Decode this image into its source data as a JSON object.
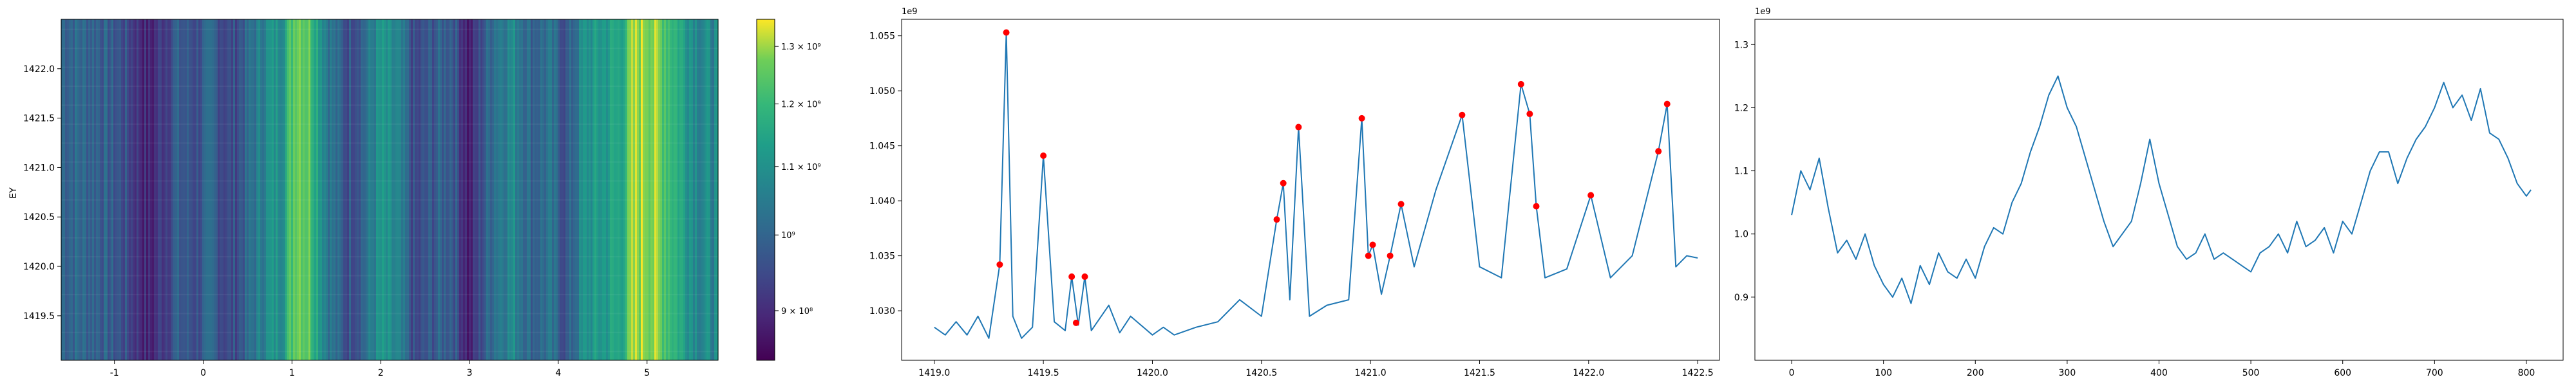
{
  "chart_data": [
    {
      "type": "heatmap",
      "colormap": "viridis",
      "xlabel": "",
      "ylabel": "EY",
      "xlim": [
        -1.6,
        5.8
      ],
      "ylim": [
        1419.05,
        1422.5
      ],
      "x_ticks": [
        "-1",
        "0",
        "1",
        "2",
        "3",
        "4",
        "5"
      ],
      "y_ticks": [
        "1419.5",
        "1420.0",
        "1420.5",
        "1421.0",
        "1421.5",
        "1422.0"
      ],
      "colorbar": {
        "scale": "log",
        "range": [
          840000000,
          1350000000
        ],
        "tick_values": [
          900000000,
          1000000000,
          1100000000,
          1200000000,
          1300000000
        ],
        "tick_labels": [
          "9 × 10⁸",
          "10⁹",
          "1.1 × 10⁹",
          "1.2 × 10⁹",
          "1.3 × 10⁹"
        ]
      },
      "column_profile_note_x": [
        -1.6,
        -1.2,
        -0.9,
        -0.6,
        -0.5,
        -0.3,
        -0.1,
        0.1,
        0.3,
        0.5,
        0.7,
        0.9,
        1.05,
        1.2,
        1.4,
        1.6,
        1.8,
        2.0,
        2.2,
        2.4,
        2.6,
        2.8,
        3.0,
        3.1,
        3.3,
        3.5,
        3.7,
        3.9,
        4.1,
        4.3,
        4.5,
        4.7,
        4.85,
        5.0,
        5.2,
        5.4,
        5.6,
        5.8
      ],
      "column_profile_values": [
        1010000000,
        1000000000,
        960000000,
        880000000,
        920000000,
        980000000,
        960000000,
        990000000,
        940000000,
        1000000000,
        1080000000,
        1120000000,
        1300000000,
        1250000000,
        1050000000,
        960000000,
        1000000000,
        1100000000,
        1050000000,
        930000000,
        980000000,
        1000000000,
        870000000,
        940000000,
        1050000000,
        1080000000,
        1000000000,
        1020000000,
        960000000,
        1100000000,
        1120000000,
        1150000000,
        1290000000,
        1310000000,
        1250000000,
        1150000000,
        1080000000,
        1070000000
      ]
    },
    {
      "type": "line",
      "offset_label": "1e9",
      "xlabel": "",
      "ylabel": "",
      "xlim": [
        1418.85,
        1422.6
      ],
      "ylim": [
        1.0255,
        1.0565
      ],
      "x_ticks": [
        "1419.0",
        "1419.5",
        "1420.0",
        "1420.5",
        "1421.0",
        "1421.5",
        "1422.0",
        "1422.5"
      ],
      "y_ticks": [
        "1.030",
        "1.035",
        "1.040",
        "1.045",
        "1.050",
        "1.055"
      ],
      "series": [
        {
          "x": [
            1419.0,
            1419.05,
            1419.1,
            1419.15,
            1419.2,
            1419.25,
            1419.3,
            1419.33,
            1419.36,
            1419.4,
            1419.45,
            1419.5,
            1419.55,
            1419.6,
            1419.63,
            1419.66,
            1419.69,
            1419.72,
            1419.8,
            1419.85,
            1419.9,
            1420.0,
            1420.05,
            1420.1,
            1420.2,
            1420.3,
            1420.4,
            1420.5,
            1420.57,
            1420.6,
            1420.63,
            1420.67,
            1420.72,
            1420.8,
            1420.9,
            1420.96,
            1420.99,
            1421.01,
            1421.05,
            1421.09,
            1421.14,
            1421.2,
            1421.3,
            1421.42,
            1421.5,
            1421.6,
            1421.69,
            1421.73,
            1421.76,
            1421.8,
            1421.9,
            1422.01,
            1422.1,
            1422.2,
            1422.32,
            1422.36,
            1422.4,
            1422.45,
            1422.5
          ],
          "y": [
            1.0285,
            1.0278,
            1.029,
            1.0278,
            1.0295,
            1.0275,
            1.0342,
            1.0553,
            1.0295,
            1.0275,
            1.0285,
            1.0441,
            1.029,
            1.0282,
            1.0331,
            1.0287,
            1.0331,
            1.0282,
            1.0305,
            1.028,
            1.0295,
            1.0278,
            1.0285,
            1.0278,
            1.0285,
            1.029,
            1.031,
            1.0295,
            1.0383,
            1.0416,
            1.031,
            1.0467,
            1.0295,
            1.0305,
            1.031,
            1.0475,
            1.035,
            1.036,
            1.0315,
            1.035,
            1.0397,
            1.034,
            1.041,
            1.0478,
            1.034,
            1.033,
            1.0506,
            1.0479,
            1.0395,
            1.033,
            1.0338,
            1.0405,
            1.033,
            1.035,
            1.0445,
            1.0488,
            1.034,
            1.035,
            1.0348
          ]
        }
      ],
      "peaks": {
        "x": [
          1419.3,
          1419.33,
          1419.5,
          1419.63,
          1419.65,
          1419.69,
          1420.57,
          1420.6,
          1420.67,
          1420.96,
          1420.99,
          1421.01,
          1421.09,
          1421.14,
          1421.42,
          1421.69,
          1421.73,
          1421.76,
          1422.01,
          1422.32,
          1422.36
        ],
        "y": [
          1.0342,
          1.0553,
          1.0441,
          1.0331,
          1.0289,
          1.0331,
          1.0383,
          1.0416,
          1.0467,
          1.0475,
          1.035,
          1.036,
          1.035,
          1.0397,
          1.0478,
          1.0506,
          1.0479,
          1.0395,
          1.0405,
          1.0445,
          1.0488
        ]
      }
    },
    {
      "type": "line",
      "offset_label": "1e9",
      "xlabel": "",
      "ylabel": "",
      "xlim": [
        -40,
        840
      ],
      "ylim": [
        0.8,
        1.34
      ],
      "x_ticks": [
        "0",
        "100",
        "200",
        "300",
        "400",
        "500",
        "600",
        "700",
        "800"
      ],
      "y_ticks": [
        "0.9",
        "1.0",
        "1.1",
        "1.2",
        "1.3"
      ],
      "series": [
        {
          "x": [
            0,
            10,
            20,
            30,
            40,
            50,
            60,
            70,
            80,
            90,
            100,
            110,
            120,
            130,
            140,
            150,
            160,
            170,
            180,
            190,
            200,
            210,
            220,
            230,
            240,
            250,
            260,
            270,
            280,
            290,
            300,
            310,
            320,
            330,
            340,
            350,
            360,
            370,
            380,
            390,
            400,
            410,
            420,
            430,
            440,
            450,
            460,
            470,
            480,
            490,
            500,
            510,
            520,
            530,
            540,
            550,
            560,
            570,
            580,
            590,
            600,
            610,
            620,
            630,
            640,
            650,
            660,
            670,
            680,
            690,
            700,
            710,
            720,
            730,
            740,
            750,
            760,
            770,
            780,
            790,
            800,
            805
          ],
          "y": [
            1.03,
            1.1,
            1.07,
            1.12,
            1.04,
            0.97,
            0.99,
            0.96,
            1.0,
            0.95,
            0.92,
            0.9,
            0.93,
            0.89,
            0.95,
            0.92,
            0.97,
            0.94,
            0.93,
            0.96,
            0.93,
            0.98,
            1.01,
            1.0,
            1.05,
            1.08,
            1.13,
            1.17,
            1.22,
            1.25,
            1.2,
            1.17,
            1.12,
            1.07,
            1.02,
            0.98,
            1.0,
            1.02,
            1.08,
            1.15,
            1.08,
            1.03,
            0.98,
            0.96,
            0.97,
            1.0,
            0.96,
            0.97,
            0.96,
            0.95,
            0.94,
            0.97,
            0.98,
            1.0,
            0.97,
            1.02,
            0.98,
            0.99,
            1.01,
            0.97,
            1.02,
            1.0,
            1.05,
            1.1,
            1.13,
            1.13,
            1.08,
            1.12,
            1.15,
            1.17,
            1.2,
            1.24,
            1.2,
            1.22,
            1.18,
            1.23,
            1.16,
            1.15,
            1.12,
            1.08,
            1.06,
            1.07
          ]
        }
      ]
    }
  ]
}
